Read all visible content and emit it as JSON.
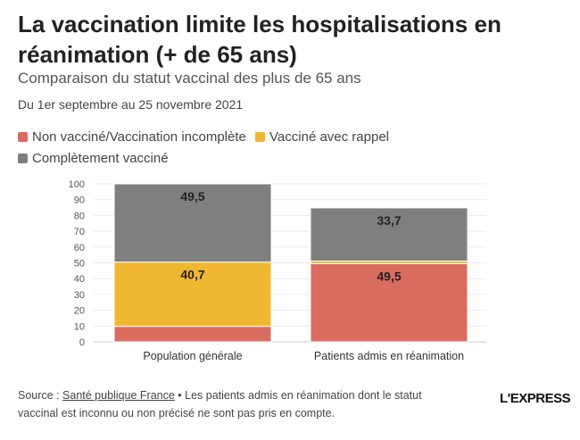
{
  "title": "La vaccination limite les hospitalisations en réanimation (+ de 65 ans)",
  "subtitle": "Comparaison du statut vaccinal des plus de 65 ans",
  "date_range": "Du 1er septembre au 25 novembre 2021",
  "legend": [
    {
      "label": "Non vacciné/Vaccination incomplète",
      "color": "#d96b5f"
    },
    {
      "label": "Vacciné avec rappel",
      "color": "#f0b831"
    },
    {
      "label": "Complètement vacciné",
      "color": "#7f7f7f"
    }
  ],
  "footer": {
    "source_prefix": "Source : ",
    "source_link": "Santé publique France",
    "note": " • Les patients admis en réanimation dont le statut vaccinal est inconnu ou non précisé ne sont pas pris en compte."
  },
  "logo": "L'EXPRESS",
  "chart_data": {
    "type": "bar",
    "stacked": true,
    "categories": [
      "Population générale",
      "Patients admis en réanimation"
    ],
    "series": [
      {
        "name": "Non vacciné/Vaccination incomplète",
        "color": "#d96b5f",
        "values": [
          9.8,
          49.5
        ],
        "labels": [
          "",
          "49,5"
        ]
      },
      {
        "name": "Vacciné avec rappel",
        "color": "#f0b831",
        "values": [
          40.7,
          1.6
        ],
        "labels": [
          "40,7",
          ""
        ]
      },
      {
        "name": "Complètement vacciné",
        "color": "#7f7f7f",
        "values": [
          49.5,
          33.7
        ],
        "labels": [
          "49,5",
          "33,7"
        ]
      }
    ],
    "ylim": [
      0,
      100
    ],
    "yticks": [
      0,
      10,
      20,
      30,
      40,
      50,
      60,
      70,
      80,
      90,
      100
    ],
    "grid": true
  }
}
